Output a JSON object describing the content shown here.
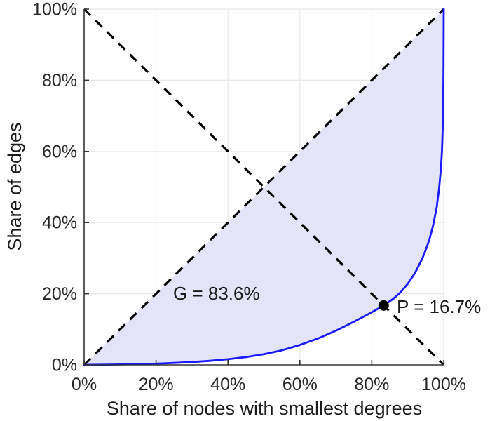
{
  "chart_data": {
    "type": "line",
    "title": "",
    "xlabel": "Share of nodes with smallest degrees",
    "ylabel": "Share of edges",
    "xlim": [
      0,
      100
    ],
    "ylim": [
      0,
      100
    ],
    "grid": true,
    "tick_values": [
      0,
      20,
      40,
      60,
      80,
      100
    ],
    "xticks": [
      "0%",
      "20%",
      "40%",
      "60%",
      "80%",
      "100%"
    ],
    "yticks": [
      "0%",
      "20%",
      "40%",
      "60%",
      "80%",
      "100%"
    ],
    "series": [
      {
        "name": "lorenz-curve",
        "style": "solid",
        "color": "#1a1aff",
        "points": [
          [
            0,
            0
          ],
          [
            5,
            0.05
          ],
          [
            10,
            0.12
          ],
          [
            15,
            0.22
          ],
          [
            20,
            0.35
          ],
          [
            25,
            0.55
          ],
          [
            30,
            0.8
          ],
          [
            35,
            1.15
          ],
          [
            40,
            1.6
          ],
          [
            45,
            2.2
          ],
          [
            50,
            3.0
          ],
          [
            55,
            4.1
          ],
          [
            60,
            5.6
          ],
          [
            65,
            7.4
          ],
          [
            70,
            9.6
          ],
          [
            75,
            12.1
          ],
          [
            80,
            14.8
          ],
          [
            83.3,
            16.7
          ],
          [
            86,
            18.6
          ],
          [
            88,
            20.4
          ],
          [
            90,
            22.8
          ],
          [
            92,
            25.8
          ],
          [
            94,
            29.8
          ],
          [
            95,
            32.3
          ],
          [
            96,
            35.2
          ],
          [
            97,
            39.0
          ],
          [
            98,
            44.0
          ],
          [
            98.7,
            49.5
          ],
          [
            99.2,
            55
          ],
          [
            99.5,
            60
          ],
          [
            99.7,
            66
          ],
          [
            99.85,
            74
          ],
          [
            99.95,
            84
          ],
          [
            100,
            100
          ]
        ]
      },
      {
        "name": "equality-diagonal",
        "style": "dashed",
        "color": "#000000",
        "points": [
          [
            0,
            0
          ],
          [
            100,
            100
          ]
        ]
      },
      {
        "name": "anti-diagonal",
        "style": "dashed",
        "color": "#000000",
        "points": [
          [
            0,
            100
          ],
          [
            100,
            0
          ]
        ]
      }
    ],
    "fill_between": {
      "upper": "equality-diagonal",
      "lower": "lorenz-curve",
      "color": "#e4e4f8"
    },
    "gini": {
      "label": "G = 83.6%",
      "value": 83.6
    },
    "pivot": {
      "label": "P = 16.7%",
      "value": 16.7,
      "x": 83.3,
      "y": 16.7
    },
    "colors": {
      "curve": "#1a1aff",
      "fill": "#e4e4f8",
      "dashed": "#000000",
      "grid": "#e8e8e8",
      "axis": "#333333",
      "text": "#262626",
      "dot": "#000000"
    }
  }
}
